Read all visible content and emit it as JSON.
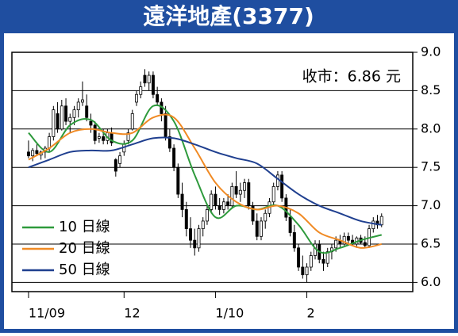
{
  "chart_data": {
    "type": "candlestick",
    "title": "遠洋地產(3377)",
    "annotation": "收市：6.86 元",
    "xlim": [
      -4,
      92.5
    ],
    "xticks": [
      {
        "value": 0,
        "label": "11/09"
      },
      {
        "value": 23,
        "label": "12"
      },
      {
        "value": 45,
        "label": "1/10"
      },
      {
        "value": 67,
        "label": "2"
      }
    ],
    "ylim": [
      5.88,
      9.0
    ],
    "yticks": [
      {
        "value": 6,
        "label": "6.0"
      },
      6.5,
      {
        "value": 7,
        "label": "7.0"
      },
      7.5,
      {
        "value": 8,
        "label": "8.0"
      },
      8.5,
      {
        "value": 9,
        "label": "9.0"
      }
    ],
    "grid": true,
    "legend": "lower-left",
    "open": [
      7.7,
      7.65,
      7.72,
      7.66,
      7.7,
      7.75,
      7.9,
      8.2,
      8.0,
      8.3,
      8.1,
      8.15,
      8.25,
      8.35,
      8.3,
      8.1,
      8.05,
      7.88,
      7.9,
      7.85,
      7.95,
      7.6,
      7.55,
      7.7,
      7.85,
      8.0,
      8.35,
      8.45,
      8.7,
      8.6,
      8.7,
      8.45,
      8.35,
      8.2,
      7.9,
      7.75,
      7.5,
      7.15,
      6.95,
      6.7,
      6.55,
      6.45,
      6.7,
      6.8,
      6.95,
      7.15,
      7.0,
      6.95,
      7.05,
      7.0,
      7.25,
      7.15,
      7.2,
      7.3,
      7.0,
      6.8,
      6.6,
      6.8,
      6.9,
      7.05,
      7.25,
      7.4,
      7.1,
      6.85,
      6.65,
      6.45,
      6.2,
      6.1,
      6.2,
      6.35,
      6.5,
      6.3,
      6.25,
      6.4,
      6.45,
      6.55,
      6.5,
      6.6,
      6.55,
      6.5,
      6.58,
      6.52,
      6.48,
      6.7,
      6.8,
      6.75
    ],
    "high": [
      7.85,
      7.75,
      7.8,
      7.72,
      7.78,
      7.95,
      8.3,
      8.35,
      8.38,
      8.4,
      8.2,
      8.3,
      8.4,
      8.62,
      8.45,
      8.2,
      8.1,
      7.95,
      8.0,
      8.0,
      8.02,
      7.62,
      7.7,
      7.85,
      8.0,
      8.25,
      8.5,
      8.62,
      8.78,
      8.75,
      8.75,
      8.55,
      8.4,
      8.3,
      8.0,
      7.8,
      7.55,
      7.3,
      7.05,
      6.85,
      6.7,
      6.75,
      6.85,
      7.0,
      7.2,
      7.25,
      7.1,
      7.1,
      7.15,
      7.3,
      7.45,
      7.3,
      7.35,
      7.35,
      7.05,
      6.9,
      6.85,
      6.95,
      7.1,
      7.3,
      7.45,
      7.45,
      7.15,
      6.95,
      6.75,
      6.5,
      6.35,
      6.25,
      6.4,
      6.55,
      6.55,
      6.4,
      6.45,
      6.5,
      6.6,
      6.62,
      6.65,
      6.65,
      6.62,
      6.6,
      6.62,
      6.6,
      6.75,
      6.85,
      6.88,
      6.9
    ],
    "low": [
      7.62,
      7.58,
      7.65,
      7.6,
      7.62,
      7.7,
      7.85,
      7.95,
      7.98,
      8.05,
      7.95,
      8.05,
      8.15,
      8.3,
      8.1,
      7.95,
      7.8,
      7.82,
      7.8,
      7.8,
      7.78,
      7.38,
      7.5,
      7.65,
      7.8,
      7.98,
      8.3,
      8.4,
      8.55,
      8.5,
      8.4,
      8.3,
      8.1,
      7.85,
      7.7,
      7.45,
      7.1,
      6.85,
      6.6,
      6.45,
      6.35,
      6.4,
      6.6,
      6.75,
      6.9,
      6.95,
      6.88,
      6.9,
      6.95,
      6.98,
      7.1,
      7.05,
      7.1,
      6.95,
      6.75,
      6.55,
      6.55,
      6.7,
      6.85,
      7.0,
      7.2,
      7.05,
      6.8,
      6.6,
      6.4,
      6.15,
      6.05,
      6.0,
      6.15,
      6.3,
      6.25,
      6.15,
      6.2,
      6.3,
      6.4,
      6.45,
      6.48,
      6.5,
      6.48,
      6.45,
      6.5,
      6.45,
      6.45,
      6.65,
      6.7,
      6.72
    ],
    "close": [
      7.65,
      7.72,
      7.68,
      7.7,
      7.75,
      7.9,
      8.25,
      8.0,
      8.3,
      8.1,
      8.15,
      8.25,
      8.35,
      8.38,
      8.15,
      8.05,
      7.85,
      7.9,
      7.85,
      7.95,
      7.82,
      7.45,
      7.65,
      7.8,
      7.95,
      8.2,
      8.45,
      8.55,
      8.6,
      8.7,
      8.45,
      8.35,
      8.2,
      7.9,
      7.75,
      7.5,
      7.15,
      6.95,
      6.7,
      6.55,
      6.45,
      6.7,
      6.8,
      6.95,
      7.15,
      7.0,
      6.95,
      7.05,
      7.0,
      7.25,
      7.15,
      7.2,
      7.3,
      7.0,
      6.8,
      6.6,
      6.8,
      6.9,
      7.05,
      7.25,
      7.4,
      7.1,
      6.85,
      6.65,
      6.45,
      6.2,
      6.1,
      6.2,
      6.35,
      6.5,
      6.3,
      6.25,
      6.4,
      6.45,
      6.55,
      6.5,
      6.6,
      6.55,
      6.5,
      6.58,
      6.52,
      6.48,
      6.7,
      6.8,
      6.75,
      6.86
    ],
    "series": [
      {
        "name": "10 日線",
        "color": "#2e9a3c",
        "x": [
          0,
          5,
          10,
          15,
          20,
          25,
          30,
          35,
          40,
          45,
          50,
          55,
          60,
          65,
          70,
          75,
          80,
          85
        ],
        "values": [
          7.95,
          7.7,
          8.05,
          8.12,
          7.85,
          7.85,
          8.3,
          8.1,
          7.4,
          6.85,
          7.0,
          6.95,
          7.0,
          6.75,
          6.4,
          6.45,
          6.55,
          6.62
        ]
      },
      {
        "name": "20 日線",
        "color": "#f08a24",
        "x": [
          0,
          5,
          10,
          15,
          20,
          25,
          30,
          35,
          40,
          45,
          50,
          55,
          60,
          65,
          70,
          75,
          80,
          85
        ],
        "values": [
          7.6,
          7.75,
          7.95,
          8.0,
          7.95,
          7.95,
          8.15,
          8.15,
          7.75,
          7.3,
          7.05,
          6.95,
          7.0,
          6.9,
          6.65,
          6.55,
          6.45,
          6.5
        ]
      },
      {
        "name": "50 日線",
        "color": "#1f3f8f",
        "x": [
          0,
          5,
          10,
          15,
          20,
          25,
          30,
          35,
          40,
          45,
          50,
          55,
          60,
          65,
          70,
          75,
          80,
          85
        ],
        "values": [
          7.5,
          7.6,
          7.7,
          7.72,
          7.72,
          7.8,
          7.88,
          7.88,
          7.8,
          7.7,
          7.62,
          7.55,
          7.35,
          7.15,
          7.0,
          6.9,
          6.8,
          6.75
        ]
      }
    ]
  }
}
